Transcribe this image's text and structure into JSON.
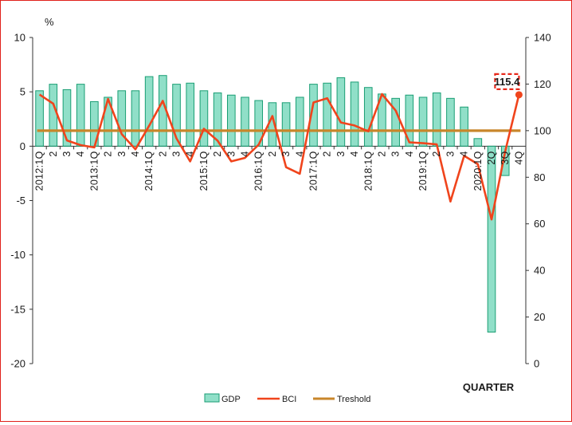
{
  "chart_data": {
    "type": "bar+line",
    "y_left_unit": "%",
    "y_left_ticks": [
      "10",
      "5",
      "0",
      "-5",
      "-10",
      "-15",
      "-20"
    ],
    "y_left_range": [
      -20,
      10
    ],
    "y_right_ticks": [
      "140",
      "120",
      "100",
      "80",
      "60",
      "40",
      "20",
      "0"
    ],
    "y_right_range": [
      0,
      140
    ],
    "x_title": "QUARTER",
    "category_labels": [
      "2012:1Q",
      "2",
      "3",
      "4",
      "2013:1Q",
      "2",
      "3",
      "4",
      "2014:1Q",
      "2",
      "3",
      "4",
      "2015:1Q",
      "2",
      "3",
      "4",
      "2016:1Q",
      "2",
      "3",
      "4",
      "2017:1Q",
      "2",
      "3",
      "4",
      "2018:1Q",
      "2",
      "3",
      "4",
      "2019:1Q",
      "2",
      "3",
      "4",
      "2020:1Q",
      "2Q",
      "3Q",
      "4Q"
    ],
    "series": [
      {
        "name": "GDP",
        "type": "bar",
        "axis": "left",
        "color": "#35c49a",
        "values": [
          5.1,
          5.7,
          5.2,
          5.7,
          4.1,
          4.5,
          5.1,
          5.1,
          6.4,
          6.5,
          5.7,
          5.8,
          5.1,
          4.9,
          4.7,
          4.5,
          4.2,
          4.0,
          4.0,
          4.5,
          5.7,
          5.8,
          6.3,
          5.9,
          5.4,
          4.8,
          4.4,
          4.7,
          4.5,
          4.9,
          4.4,
          3.6,
          0.7,
          -17.1,
          -2.7,
          null
        ]
      },
      {
        "name": "BCI",
        "type": "line",
        "axis": "right",
        "color": "#f0441c",
        "values": [
          115.5,
          111.6,
          95.8,
          93.8,
          92.8,
          113.6,
          98.5,
          92.0,
          102.1,
          112.8,
          96.7,
          86.8,
          100.8,
          95.7,
          86.8,
          88.3,
          94.0,
          106.3,
          84.3,
          81.5,
          112.1,
          113.9,
          103.5,
          102.2,
          99.7,
          115.7,
          108.6,
          95.0,
          94.6,
          94.1,
          69.6,
          89.2,
          85.6,
          61.9,
          91.2,
          115.4
        ]
      },
      {
        "name": "Treshold",
        "type": "line",
        "axis": "right",
        "color": "#c8862a",
        "value": 100
      }
    ],
    "annotation": "115.4",
    "legend": [
      "GDP",
      "BCI",
      "Treshold"
    ]
  }
}
